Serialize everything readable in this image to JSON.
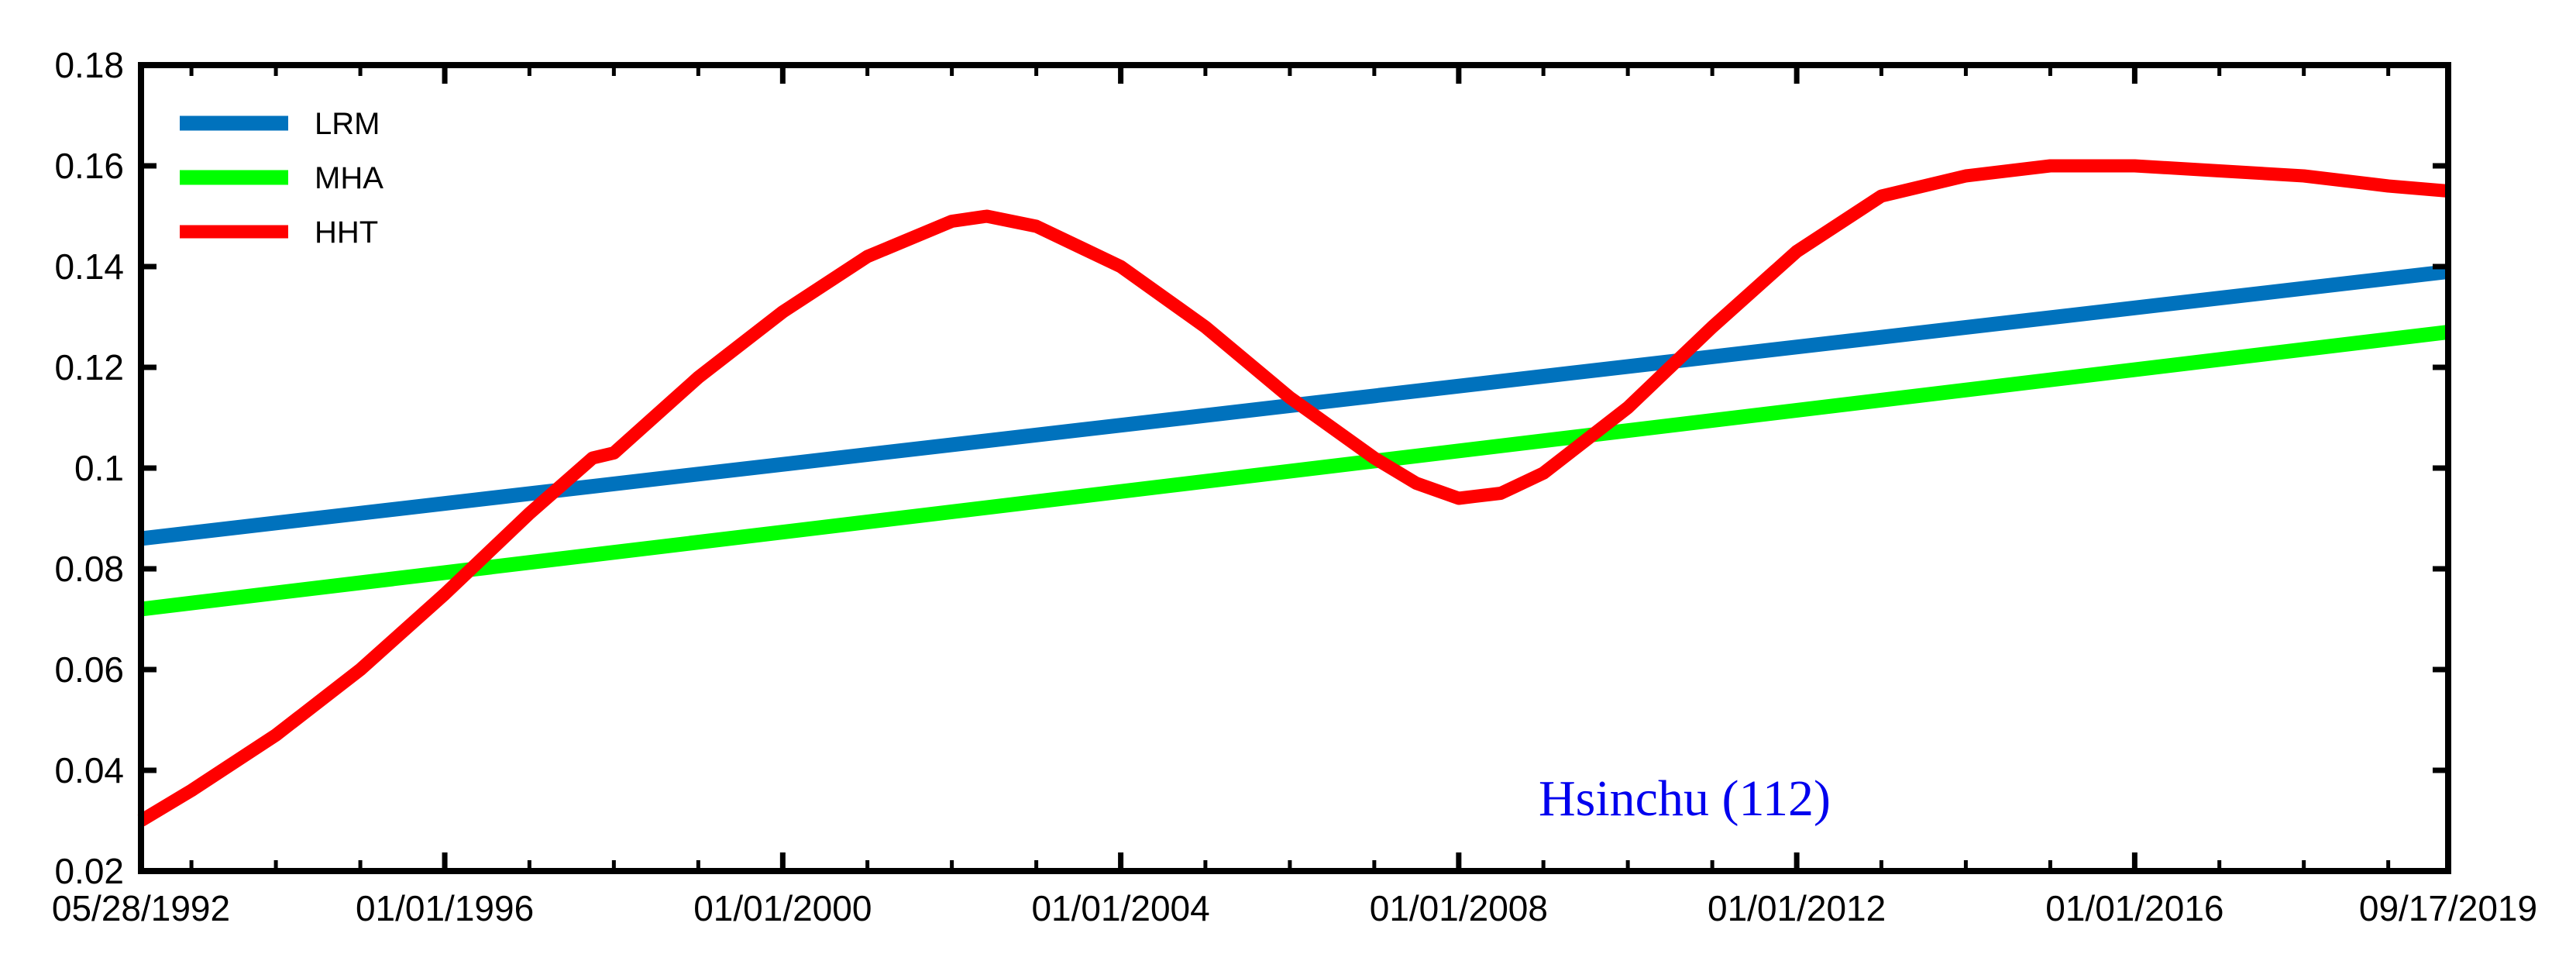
{
  "chart_data": {
    "type": "line",
    "title": "",
    "xlabel": "",
    "ylabel": "",
    "x_tick_labels": [
      "05/28/1992",
      "01/01/1996",
      "01/01/2000",
      "01/01/2004",
      "01/01/2008",
      "01/01/2012",
      "01/01/2016",
      "09/17/2019"
    ],
    "x_tick_dates": [
      "1992-05-28",
      "1996-01-01",
      "2000-01-01",
      "2004-01-01",
      "2008-01-01",
      "2012-01-01",
      "2016-01-01",
      "2019-09-17"
    ],
    "y_ticks": [
      0.02,
      0.04,
      0.06,
      0.08,
      0.1,
      0.12,
      0.14,
      0.16,
      0.18
    ],
    "y_tick_labels": [
      "0.02",
      "0.04",
      "0.06",
      "0.08",
      "0.1",
      "0.12",
      "0.14",
      "0.16",
      "0.18"
    ],
    "xlim": [
      "1992-05-28",
      "2019-09-17"
    ],
    "ylim": [
      0.02,
      0.18
    ],
    "grid": false,
    "legend_position": "top-left",
    "annotation": {
      "text": "Hsinchu (112)",
      "color": "#0000ee"
    },
    "series": [
      {
        "name": "LRM",
        "color": "#0072bd",
        "points": [
          [
            "1992-05-28",
            0.086
          ],
          [
            "2019-09-17",
            0.139
          ]
        ]
      },
      {
        "name": "MHA",
        "color": "#00ff00",
        "points": [
          [
            "1992-05-28",
            0.072
          ],
          [
            "2019-09-17",
            0.127
          ]
        ]
      },
      {
        "name": "HHT",
        "color": "#ff0000",
        "points": [
          [
            "1992-05-28",
            0.03
          ],
          [
            "1993-01-01",
            0.036
          ],
          [
            "1994-01-01",
            0.047
          ],
          [
            "1995-01-01",
            0.06
          ],
          [
            "1996-01-01",
            0.075
          ],
          [
            "1997-01-01",
            0.091
          ],
          [
            "1997-10-01",
            0.102
          ],
          [
            "1998-01-01",
            0.103
          ],
          [
            "1999-01-01",
            0.118
          ],
          [
            "2000-01-01",
            0.131
          ],
          [
            "2001-01-01",
            0.142
          ],
          [
            "2002-01-01",
            0.149
          ],
          [
            "2002-06-01",
            0.15
          ],
          [
            "2003-01-01",
            0.148
          ],
          [
            "2004-01-01",
            0.14
          ],
          [
            "2005-01-01",
            0.128
          ],
          [
            "2006-01-01",
            0.114
          ],
          [
            "2007-01-01",
            0.102
          ],
          [
            "2007-07-01",
            0.097
          ],
          [
            "2008-01-01",
            0.094
          ],
          [
            "2008-07-01",
            0.095
          ],
          [
            "2009-01-01",
            0.099
          ],
          [
            "2010-01-01",
            0.112
          ],
          [
            "2011-01-01",
            0.128
          ],
          [
            "2012-01-01",
            0.143
          ],
          [
            "2013-01-01",
            0.154
          ],
          [
            "2014-01-01",
            0.158
          ],
          [
            "2015-01-01",
            0.16
          ],
          [
            "2016-01-01",
            0.16
          ],
          [
            "2017-01-01",
            0.159
          ],
          [
            "2018-01-01",
            0.158
          ],
          [
            "2019-01-01",
            0.156
          ],
          [
            "2019-09-17",
            0.155
          ]
        ]
      }
    ]
  }
}
